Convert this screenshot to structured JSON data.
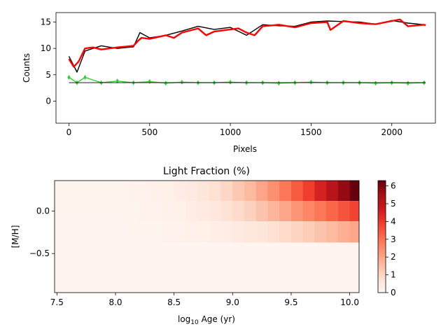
{
  "chart_data": [
    {
      "type": "line",
      "xlabel": "Pixels",
      "ylabel": "Counts",
      "xlim": [
        -80,
        2270
      ],
      "ylim": [
        -4.2,
        16.8
      ],
      "x_ticks": [
        0,
        500,
        1000,
        1500,
        2000
      ],
      "x_tick_labels": [
        "0",
        "500",
        "1000",
        "1500",
        "2000"
      ],
      "y_ticks": [
        0,
        5,
        10,
        15
      ],
      "y_tick_labels": [
        "0",
        "5",
        "10",
        "15"
      ],
      "grid": false,
      "series": [
        {
          "role": "galaxy spectrum (noisy)",
          "color": "#000000",
          "x": [
            0,
            50,
            100,
            200,
            300,
            400,
            440,
            500,
            600,
            700,
            800,
            900,
            1000,
            1100,
            1200,
            1300,
            1400,
            1500,
            1600,
            1700,
            1800,
            1900,
            2000,
            2100,
            2200,
            2210
          ],
          "values": [
            8.5,
            5.5,
            9.5,
            10.5,
            10.0,
            10.3,
            13.0,
            12.0,
            12.5,
            13.3,
            14.2,
            13.6,
            14.0,
            12.5,
            14.5,
            14.3,
            14.2,
            15.0,
            15.2,
            15.1,
            15.0,
            14.6,
            15.3,
            14.8,
            14.5,
            14.4
          ]
        },
        {
          "role": "best-fit model",
          "color": "#ff0000",
          "x": [
            0,
            30,
            60,
            100,
            150,
            200,
            300,
            400,
            430,
            450,
            500,
            600,
            650,
            700,
            800,
            850,
            900,
            1000,
            1050,
            1100,
            1150,
            1200,
            1300,
            1400,
            1500,
            1600,
            1620,
            1700,
            1800,
            1900,
            2000,
            2050,
            2100,
            2200,
            2210
          ],
          "values": [
            8.0,
            6.5,
            7.5,
            10.0,
            10.2,
            9.8,
            10.2,
            10.5,
            11.5,
            12.0,
            11.8,
            12.5,
            12.0,
            13.0,
            13.8,
            12.5,
            13.2,
            13.6,
            13.8,
            13.0,
            12.5,
            14.2,
            14.5,
            14.0,
            14.8,
            15.0,
            13.5,
            15.2,
            14.8,
            14.6,
            15.2,
            15.5,
            14.2,
            14.5,
            14.4
          ]
        },
        {
          "role": "residuals (offset)",
          "color": "#32cd32",
          "marker": "diamond",
          "x": [
            0,
            50,
            100,
            200,
            300,
            400,
            500,
            600,
            700,
            800,
            900,
            1000,
            1100,
            1200,
            1300,
            1400,
            1500,
            1600,
            1700,
            1800,
            1900,
            2000,
            2100,
            2200
          ],
          "values": [
            4.5,
            3.5,
            4.5,
            3.5,
            3.8,
            3.5,
            3.7,
            3.4,
            3.6,
            3.5,
            3.5,
            3.6,
            3.5,
            3.5,
            3.4,
            3.5,
            3.6,
            3.5,
            3.5,
            3.5,
            3.4,
            3.5,
            3.4,
            3.5
          ]
        },
        {
          "role": "residual zero level",
          "color": "#000000",
          "x": [
            0,
            2210
          ],
          "values": [
            3.5,
            3.5
          ]
        }
      ]
    },
    {
      "type": "heatmap",
      "title": "Light Fraction (%)",
      "ylabel": "[M/H]",
      "xlabel_prefix": "log",
      "xlabel_sub": "10",
      "xlabel_suffix": " Age (yr)",
      "xlim": [
        7.48,
        10.08
      ],
      "ylim": [
        -0.96,
        0.36
      ],
      "x_ticks": [
        7.5,
        8.0,
        8.5,
        9.0,
        9.5,
        10.0
      ],
      "x_tick_labels": [
        "7.5",
        "8.0",
        "8.5",
        "9.0",
        "9.5",
        "10.0"
      ],
      "y_ticks": [
        0.0,
        -0.5
      ],
      "y_tick_labels": [
        "0.0",
        "−0.5"
      ],
      "colormap": "Reds",
      "colorbar_range": [
        0,
        6.3
      ],
      "colorbar_ticks": [
        0,
        1,
        2,
        3,
        4,
        5,
        6
      ],
      "colorbar_tick_labels": [
        "0",
        "1",
        "2",
        "3",
        "4",
        "5",
        "6"
      ],
      "age_edges": [
        7.48,
        7.6,
        7.7,
        7.8,
        7.9,
        8.0,
        8.1,
        8.2,
        8.3,
        8.4,
        8.5,
        8.6,
        8.7,
        8.8,
        8.9,
        9.0,
        9.1,
        9.2,
        9.3,
        9.4,
        9.5,
        9.6,
        9.7,
        9.8,
        9.9,
        10.0,
        10.08
      ],
      "metal_rows": [
        {
          "m_h_low": 0.12,
          "m_h_high": 0.36,
          "values": [
            0.05,
            0.05,
            0.05,
            0.05,
            0.05,
            0.05,
            0.1,
            0.1,
            0.15,
            0.2,
            0.3,
            0.4,
            0.55,
            0.75,
            1.0,
            1.3,
            1.6,
            2.0,
            2.4,
            2.9,
            3.4,
            3.9,
            4.5,
            5.1,
            5.7,
            6.3
          ]
        },
        {
          "m_h_low": -0.12,
          "m_h_high": 0.12,
          "values": [
            0.05,
            0.05,
            0.05,
            0.05,
            0.05,
            0.05,
            0.05,
            0.1,
            0.1,
            0.15,
            0.2,
            0.3,
            0.4,
            0.5,
            0.7,
            0.9,
            1.1,
            1.4,
            1.7,
            2.0,
            2.3,
            2.6,
            2.9,
            3.2,
            3.5,
            3.8
          ]
        },
        {
          "m_h_low": -0.37,
          "m_h_high": -0.12,
          "values": [
            0.03,
            0.03,
            0.03,
            0.03,
            0.03,
            0.03,
            0.05,
            0.05,
            0.05,
            0.1,
            0.1,
            0.15,
            0.2,
            0.25,
            0.3,
            0.4,
            0.5,
            0.6,
            0.75,
            0.9,
            1.05,
            1.2,
            1.4,
            1.6,
            1.8,
            2.0
          ]
        },
        {
          "m_h_low": -0.96,
          "m_h_high": -0.37,
          "values": [
            0.0,
            0.0,
            0.0,
            0.0,
            0.0,
            0.0,
            0.0,
            0.0,
            0.0,
            0.0,
            0.0,
            0.0,
            0.0,
            0.0,
            0.0,
            0.0,
            0.0,
            0.0,
            0.0,
            0.0,
            0.0,
            0.0,
            0.0,
            0.0,
            0.0,
            0.0
          ]
        }
      ]
    }
  ]
}
